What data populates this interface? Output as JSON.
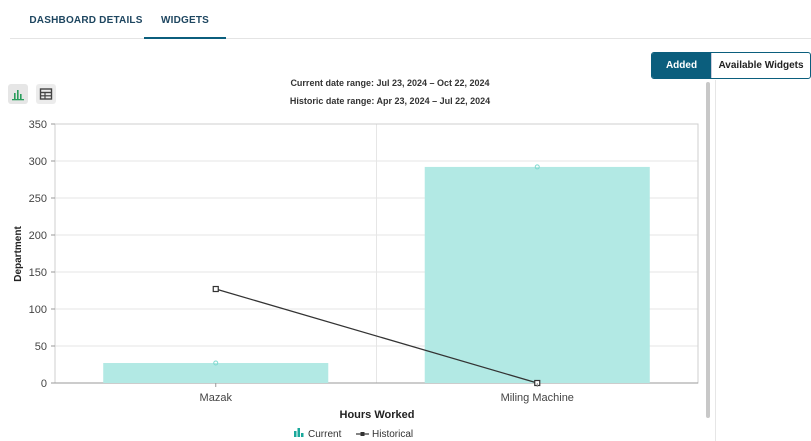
{
  "tabs": [
    {
      "label": "DASHBOARD DETAILS"
    },
    {
      "label": "WIDGETS"
    }
  ],
  "toggle": {
    "added": "Added",
    "available": "Available Widgets"
  },
  "view_buttons": {
    "chart_icon": "bar-chart-icon",
    "table_icon": "table-icon"
  },
  "date_ranges": {
    "current": "Current date range: Jul 23, 2024 – Oct 22, 2024",
    "historic": "Historic date range: Apr 23, 2024 – Jul 22, 2024"
  },
  "colors": {
    "accent": "#0b5e7d",
    "current_bar": "#b2e9e4",
    "current_marker": "#7fd9cf",
    "historical_line": "#333333"
  },
  "chart_data": {
    "type": "bar",
    "categories": [
      "Mazak",
      "Miling Machine"
    ],
    "series": [
      {
        "name": "Current",
        "kind": "bar",
        "values": [
          27,
          292
        ]
      },
      {
        "name": "Historical",
        "kind": "line",
        "values": [
          127,
          0
        ]
      }
    ],
    "xlabel": "Hours Worked",
    "ylabel": "Department",
    "ylim": [
      0,
      350
    ],
    "yticks": [
      0,
      50,
      100,
      150,
      200,
      250,
      300,
      350
    ],
    "grid": true,
    "legend": "bottom"
  }
}
